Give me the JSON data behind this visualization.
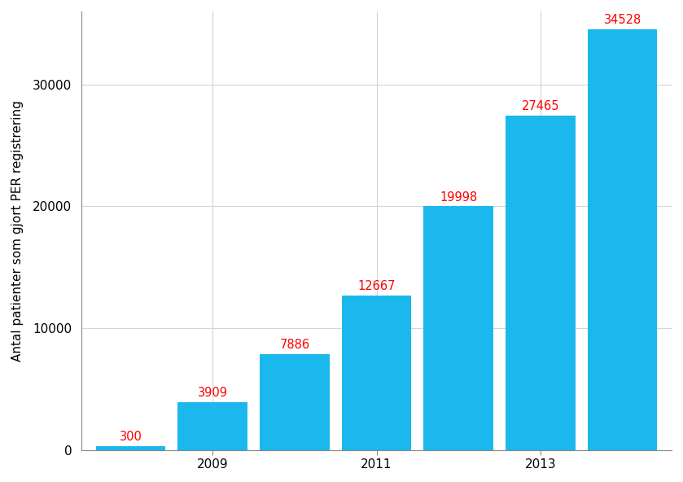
{
  "years": [
    2008,
    2009,
    2010,
    2011,
    2012,
    2013,
    2014
  ],
  "values": [
    300,
    3909,
    7886,
    12667,
    19998,
    27465,
    34528
  ],
  "bar_color": "#1BB8EE",
  "label_color": "#FF0000",
  "ylabel": "Antal patienter som gjort PER registrering",
  "background_color": "#FFFFFF",
  "grid_color": "#D4D4D4",
  "yticks": [
    0,
    10000,
    20000,
    30000
  ],
  "xticks": [
    2009,
    2011,
    2013
  ],
  "ylim": [
    0,
    36000
  ],
  "xlim": [
    2007.4,
    2014.6
  ],
  "label_fontsize": 10.5,
  "axis_fontsize": 11,
  "bar_width": 0.85
}
